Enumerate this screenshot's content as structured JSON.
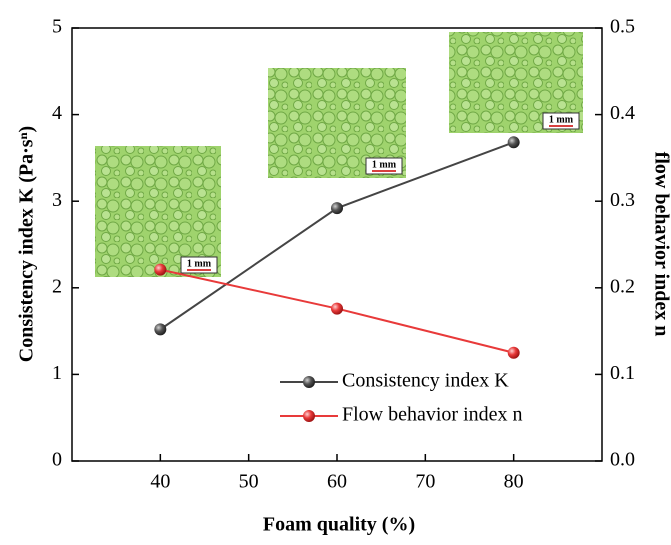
{
  "chart_data": {
    "type": "line",
    "x_label": "Foam quality  (%)",
    "y_label": "Consistency index K (Pa·sⁿ)",
    "y2_label": "flow behavior index n",
    "x": [
      40,
      60,
      80
    ],
    "series": [
      {
        "name": "Consistency index K",
        "color": "#454545",
        "values": [
          1.52,
          2.92,
          3.68
        ]
      },
      {
        "name": "Flow behavior index n",
        "color": "#e83a3a",
        "values": [
          0.221,
          0.176,
          0.125
        ],
        "axis": "y2"
      }
    ],
    "xlim": [
      30,
      90
    ],
    "xticks": [
      40,
      50,
      60,
      70,
      80
    ],
    "ylim": [
      0,
      5
    ],
    "yticks": [
      0,
      1,
      2,
      3,
      4,
      5
    ],
    "y2lim": [
      0,
      0.5
    ],
    "y2ticks": [
      {
        "value": 0,
        "label": "0.0"
      },
      0.1,
      0.2,
      0.3,
      0.4,
      0.5
    ],
    "legend": "lower right",
    "annotations": [
      "1 mm",
      "1 mm",
      "1 mm"
    ]
  }
}
